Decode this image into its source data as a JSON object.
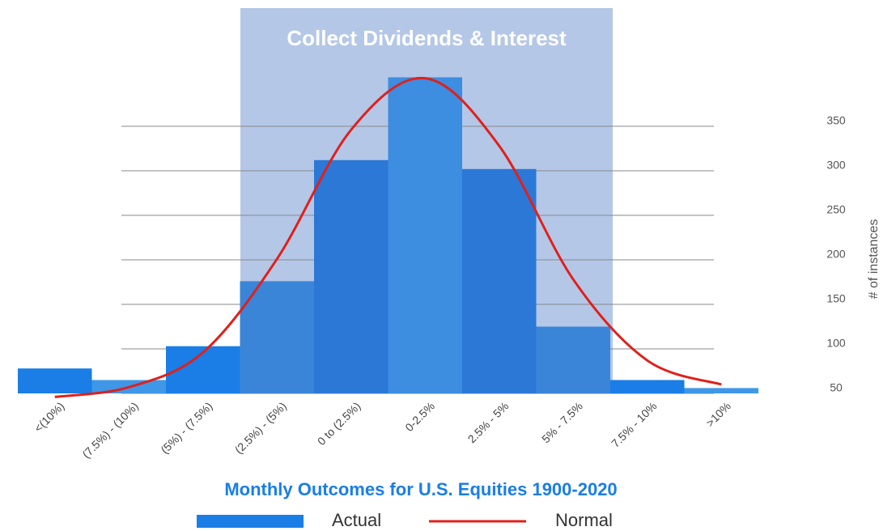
{
  "chart_data": {
    "type": "bar",
    "title": "Monthly Outcomes for U.S. Equities 1900-2020",
    "annotation": "Collect Dividends & Interest",
    "y_label": "# of instances",
    "categories": [
      "<(10%)",
      "(7.5%) - (10%)",
      "(5%) - (7.5%)",
      "(2.5%) - (5%)",
      "0 to (2.5%)",
      "0-2.5%",
      "2.5% - 5%",
      "5% - 7.5%",
      "7.5% - 10%",
      ">10%"
    ],
    "series": [
      {
        "name": "Actual",
        "type": "bar",
        "color": "#1a7ee6",
        "colors": [
          "#1a7ee6",
          "#3f97e8",
          "#1a7ee6",
          "#3b85d8",
          "#2b78d6",
          "#3d8de0",
          "#2b78d6",
          "#3b85d8",
          "#1a7ee6",
          "#3f97e8"
        ],
        "values": [
          78,
          65,
          103,
          176,
          312,
          405,
          302,
          125,
          65,
          56
        ]
      },
      {
        "name": "Normal",
        "type": "line",
        "color": "#e0201b",
        "values": [
          46,
          57,
          96,
          201,
          346,
          404,
          328,
          178,
          87,
          60
        ]
      }
    ],
    "ylim": [
      50,
      480
    ],
    "yticks": [
      50,
      100,
      150,
      200,
      250,
      300,
      350
    ],
    "grid": true
  }
}
